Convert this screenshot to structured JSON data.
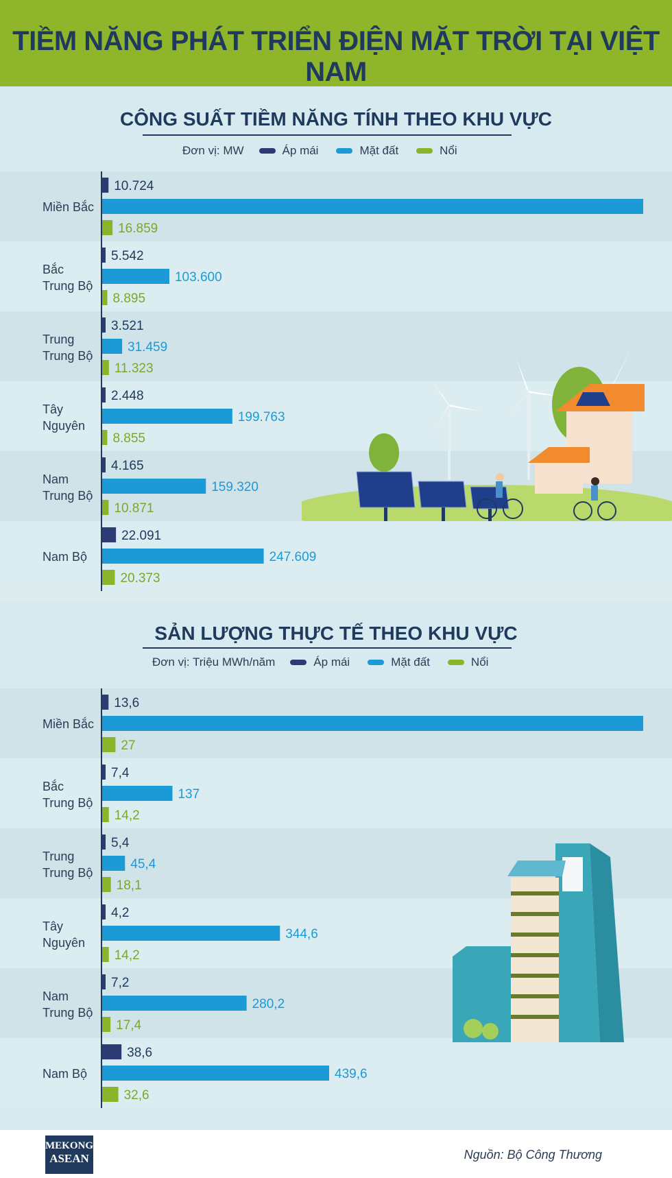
{
  "title": "TIỀM NĂNG PHÁT TRIỂN ĐIỆN MẶT TRỜI TẠI VIỆT NAM",
  "colors": {
    "ap_mai": "#2d3b75",
    "mat_dat": "#1b9ad6",
    "noi": "#8ab52a",
    "header": "#8fb52a",
    "text": "#1f3a5c"
  },
  "chart_data": [
    {
      "type": "bar",
      "orientation": "horizontal",
      "title": "CÔNG SUẤT TIỀM NĂNG TÍNH THEO KHU VỰC",
      "unit_label": "Đơn vị: MW",
      "categories": [
        "Miền Bắc",
        "Bắc\nTrung Bộ",
        "Trung\nTrung Bộ",
        "Tây\nNguyên",
        "Nam\nTrung Bộ",
        "Nam Bộ"
      ],
      "series": [
        {
          "name": "Áp mái",
          "values": [
            10724,
            5542,
            3521,
            2448,
            4165,
            22091
          ],
          "labels": [
            "10.724",
            "5.542",
            "3.521",
            "2.448",
            "4.165",
            "22.091"
          ]
        },
        {
          "name": "Mặt đất",
          "values": [
            826800,
            103600,
            31459,
            199763,
            159320,
            247609
          ],
          "labels": [
            "826.800",
            "103.600",
            "31.459",
            "199.763",
            "159.320",
            "247.609"
          ]
        },
        {
          "name": "Nổi",
          "values": [
            16859,
            8895,
            11323,
            8855,
            10871,
            20373
          ],
          "labels": [
            "16.859",
            "8.895",
            "11.323",
            "8.855",
            "10.871",
            "20.373"
          ]
        }
      ],
      "xlim": [
        0,
        826800
      ],
      "legend_position": "top"
    },
    {
      "type": "bar",
      "orientation": "horizontal",
      "title": "SẢN LƯỢNG THỰC TẾ THEO KHU VỰC",
      "unit_label": "Đơn vị: Triệu MWh/năm",
      "categories": [
        "Miền Bắc",
        "Bắc\nTrung Bộ",
        "Trung\nTrung Bộ",
        "Tây\nNguyên",
        "Nam\nTrung Bộ",
        "Nam Bộ"
      ],
      "series": [
        {
          "name": "Áp mái",
          "values": [
            13.6,
            7.4,
            5.4,
            4.2,
            7.2,
            38.6
          ],
          "labels": [
            "13,6",
            "7,4",
            "5,4",
            "4,2",
            "7,2",
            "38,6"
          ]
        },
        {
          "name": "Mặt đất",
          "values": [
            1046,
            137,
            45.4,
            344.6,
            280.2,
            439.6
          ],
          "labels": [
            "1.046",
            "137",
            "45,4",
            "344,6",
            "280,2",
            "439,6"
          ]
        },
        {
          "name": "Nổi",
          "values": [
            27,
            14.2,
            18.1,
            14.2,
            17.4,
            32.6
          ],
          "labels": [
            "27",
            "14,2",
            "18,1",
            "14,2",
            "17,4",
            "32,6"
          ]
        }
      ],
      "xlim": [
        0,
        1046
      ],
      "legend_position": "top"
    }
  ],
  "footer": {
    "logo_line1": "MEKONG",
    "logo_line2": "ASEAN",
    "source": "Nguồn: Bộ Công Thương"
  }
}
